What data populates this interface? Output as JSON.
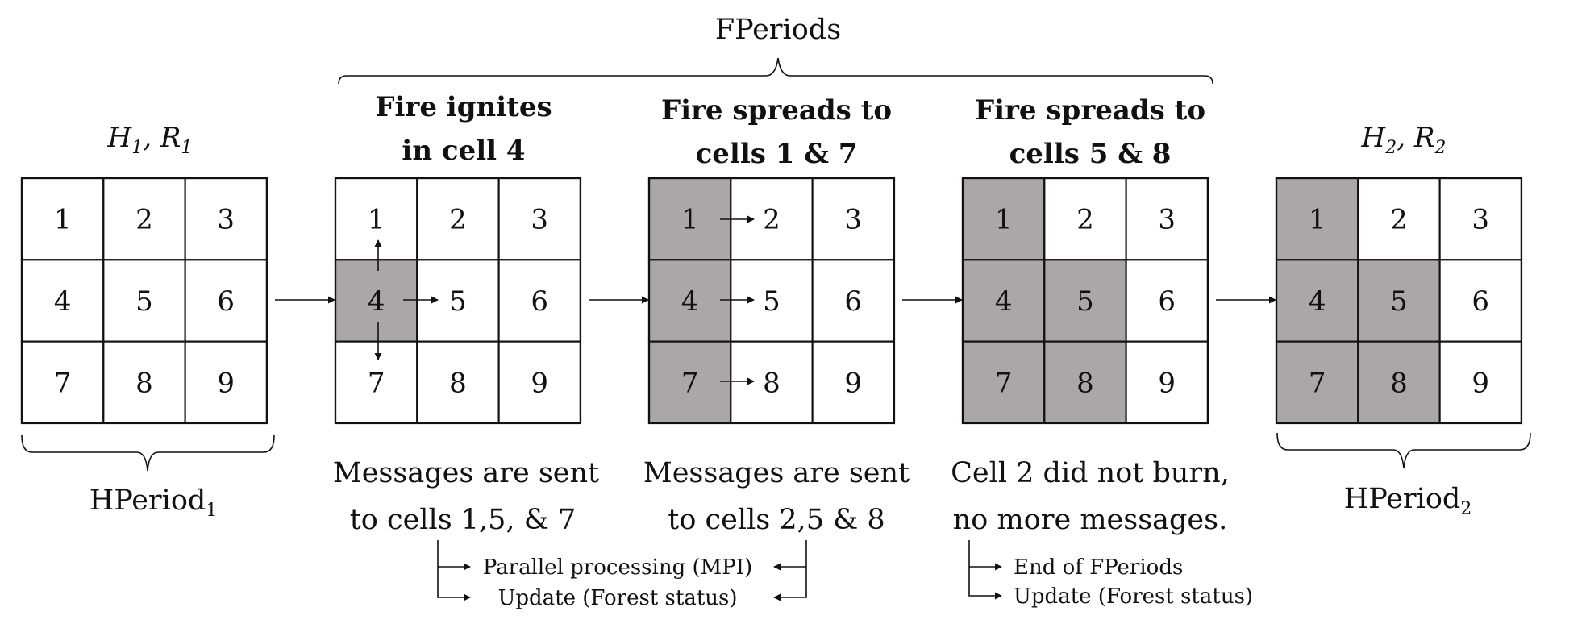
{
  "colors": {
    "burned": "#aba7a6",
    "unburned": "#ffffff",
    "ink": "#111111"
  },
  "top_label": "FPeriods",
  "stages": [
    {
      "head_math": {
        "h": "H",
        "h_sub": "1",
        "r": "R",
        "r_sub": "1"
      },
      "cells": [
        "1",
        "2",
        "3",
        "4",
        "5",
        "6",
        "7",
        "8",
        "9"
      ],
      "burned": []
    },
    {
      "head_lines": [
        "Fire ignites",
        "in cell 4"
      ],
      "cells": [
        "1",
        "2",
        "3",
        "4",
        "5",
        "6",
        "7",
        "8",
        "9"
      ],
      "burned": [
        "4"
      ]
    },
    {
      "head_lines": [
        "Fire spreads to",
        "cells 1 & 7"
      ],
      "cells": [
        "1",
        "2",
        "3",
        "4",
        "5",
        "6",
        "7",
        "8",
        "9"
      ],
      "burned": [
        "1",
        "4",
        "7"
      ]
    },
    {
      "head_lines": [
        "Fire spreads to",
        "cells 5 & 8"
      ],
      "cells": [
        "1",
        "2",
        "3",
        "4",
        "5",
        "6",
        "7",
        "8",
        "9"
      ],
      "burned": [
        "1",
        "4",
        "5",
        "7",
        "8"
      ]
    },
    {
      "head_math": {
        "h": "H",
        "h_sub": "2",
        "r": "R",
        "r_sub": "2"
      },
      "cells": [
        "1",
        "2",
        "3",
        "4",
        "5",
        "6",
        "7",
        "8",
        "9"
      ],
      "burned": [
        "1",
        "4",
        "5",
        "7",
        "8"
      ]
    }
  ],
  "hperiod_labels": [
    {
      "text": "HPeriod",
      "sub": "1"
    },
    {
      "text": "HPeriod",
      "sub": "2"
    }
  ],
  "captions": [
    [
      "Messages are sent",
      "to cells 1,5, & 7"
    ],
    [
      "Messages are sent",
      "to cells 2,5 & 8"
    ],
    [
      "Cell 2 did not burn,",
      "no more messages."
    ]
  ],
  "process_steps": {
    "parallel": "Parallel processing (MPI)",
    "update": "Update (Forest status)",
    "end": "End of FPeriods",
    "update2": "Update (Forest status)"
  }
}
